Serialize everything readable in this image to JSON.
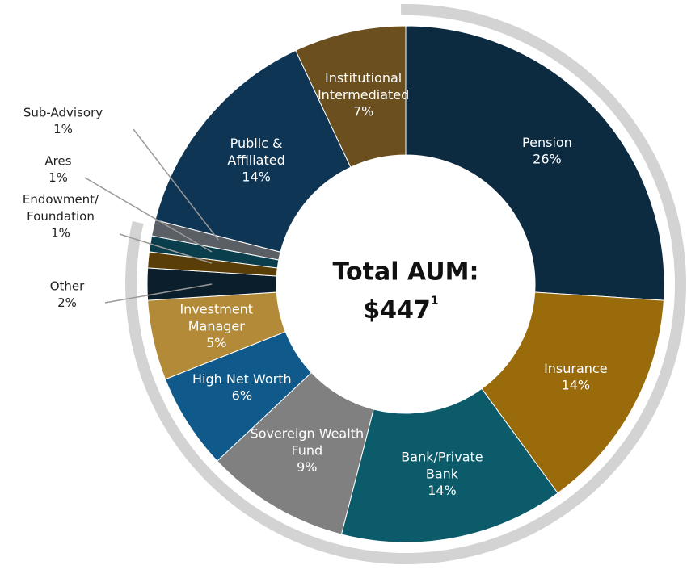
{
  "chart_data": {
    "type": "donut",
    "center_title": "Total AUM:",
    "center_value": "$447",
    "center_footnote": "1",
    "categories": [
      "Pension",
      "Insurance",
      "Bank/Private\nBank",
      "Sovereign Wealth\nFund",
      "High Net Worth",
      "Investment\nManager",
      "Other",
      "Endowment/\nFoundation",
      "Ares",
      "Sub-Advisory",
      "Public &\nAffiliated",
      "Institutional\nIntermediated"
    ],
    "values": [
      26,
      14,
      14,
      9,
      6,
      5,
      2,
      1,
      1,
      1,
      14,
      7
    ],
    "value_labels": [
      "26%",
      "14%",
      "14%",
      "9%",
      "6%",
      "5%",
      "2%",
      "1%",
      "1%",
      "1%",
      "14%",
      "7%"
    ],
    "colors": [
      "#0d2b40",
      "#9a6b0a",
      "#0b5b6b",
      "#808080",
      "#0f5a8a",
      "#b38a38",
      "#0a1e2c",
      "#5a3e08",
      "#0b3e4c",
      "#5a5f66",
      "#0f3555",
      "#6b4f1e"
    ]
  }
}
